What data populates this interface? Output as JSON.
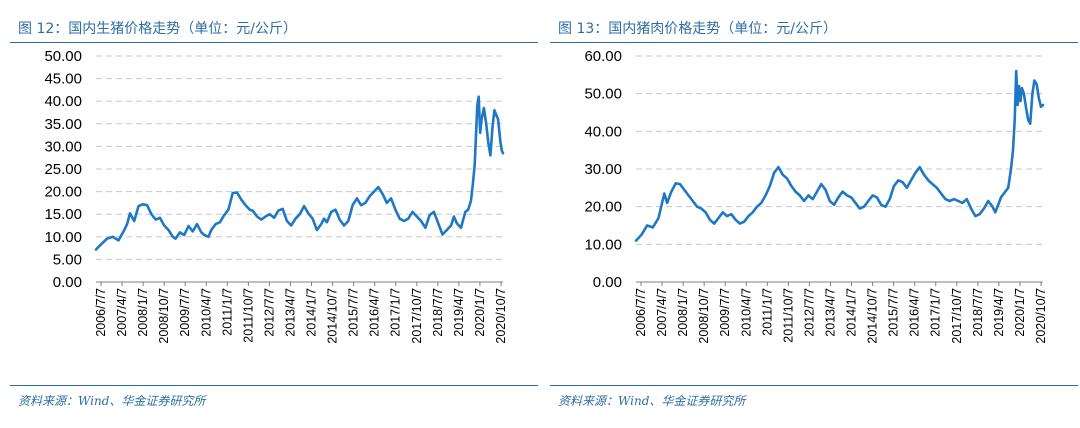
{
  "colors": {
    "accent": "#2e6da4",
    "series": "#1f78c4"
  },
  "panels": [
    {
      "title": "图 12：国内生猪价格走势（单位：元/公斤）",
      "source": "资料来源：Wind、华金证券研究所"
    },
    {
      "title": "图 13：国内猪肉价格走势（单位：元/公斤）",
      "source": "资料来源：Wind、华金证券研究所"
    }
  ],
  "chart_data": [
    {
      "type": "line",
      "title": "",
      "xlabel": "",
      "ylabel": "",
      "grid": true,
      "x_tick_labels": [
        "2006/7/7",
        "2007/4/7",
        "2008/1/7",
        "2008/10/7",
        "2009/7/7",
        "2010/4/7",
        "2011/1/7",
        "2011/10/7",
        "2012/7/7",
        "2013/4/7",
        "2014/1/7",
        "2014/10/7",
        "2015/7/7",
        "2016/4/7",
        "2017/1/7",
        "2017/10/7",
        "2018/7/7",
        "2019/4/7",
        "2020/1/7",
        "2020/10/7"
      ],
      "y_tick_labels": [
        "0.00",
        "5.00",
        "10.00",
        "15.00",
        "20.00",
        "25.00",
        "30.00",
        "35.00",
        "40.00",
        "45.00",
        "50.00"
      ],
      "ylim": [
        0,
        50
      ],
      "x_range": [
        2006.51,
        2020.77
      ],
      "series": [
        {
          "x": [
            2006.51,
            2006.7,
            2006.9,
            2007.1,
            2007.3,
            2007.5,
            2007.6,
            2007.7,
            2007.85,
            2008.0,
            2008.15,
            2008.3,
            2008.45,
            2008.6,
            2008.75,
            2008.9,
            2009.05,
            2009.2,
            2009.3,
            2009.45,
            2009.6,
            2009.75,
            2009.9,
            2010.05,
            2010.2,
            2010.3,
            2010.45,
            2010.55,
            2010.7,
            2010.85,
            2011.0,
            2011.15,
            2011.3,
            2011.45,
            2011.6,
            2011.75,
            2011.9,
            2012.0,
            2012.15,
            2012.3,
            2012.45,
            2012.6,
            2012.75,
            2012.9,
            2013.05,
            2013.2,
            2013.35,
            2013.5,
            2013.65,
            2013.8,
            2013.95,
            2014.1,
            2014.25,
            2014.4,
            2014.5,
            2014.6,
            2014.75,
            2014.9,
            2015.05,
            2015.2,
            2015.35,
            2015.5,
            2015.65,
            2015.8,
            2015.95,
            2016.1,
            2016.25,
            2016.4,
            2016.55,
            2016.7,
            2016.85,
            2017.0,
            2017.15,
            2017.3,
            2017.45,
            2017.6,
            2017.75,
            2017.9,
            2018.05,
            2018.2,
            2018.35,
            2018.5,
            2018.65,
            2018.8,
            2018.95,
            2019.05,
            2019.15,
            2019.3,
            2019.45,
            2019.55,
            2019.65,
            2019.72,
            2019.78,
            2019.82,
            2019.87,
            2019.92,
            2019.97,
            2020.02,
            2020.1,
            2020.18,
            2020.25,
            2020.33,
            2020.4,
            2020.47,
            2020.53,
            2020.6,
            2020.68,
            2020.73,
            2020.77
          ],
          "values": [
            7.2,
            8.4,
            9.6,
            10.0,
            9.2,
            11.5,
            12.8,
            15.2,
            13.5,
            16.8,
            17.2,
            17.0,
            15.0,
            13.8,
            14.2,
            12.5,
            11.5,
            10.0,
            9.6,
            11.0,
            10.4,
            12.4,
            11.2,
            12.8,
            11.0,
            10.4,
            10.0,
            11.5,
            12.8,
            13.2,
            14.8,
            16.0,
            19.7,
            19.8,
            18.2,
            17.0,
            16.0,
            15.8,
            14.5,
            13.8,
            14.5,
            15.0,
            14.2,
            15.8,
            16.2,
            13.5,
            12.5,
            14.0,
            15.0,
            16.8,
            15.2,
            14.0,
            11.5,
            12.8,
            14.0,
            13.2,
            15.5,
            16.0,
            13.8,
            12.5,
            13.5,
            17.0,
            18.5,
            17.0,
            17.5,
            19.0,
            20.0,
            21.0,
            19.5,
            17.5,
            18.5,
            16.0,
            14.0,
            13.5,
            14.0,
            15.5,
            14.5,
            13.5,
            12.0,
            14.8,
            15.5,
            13.0,
            10.5,
            11.5,
            12.5,
            14.5,
            13.0,
            12.0,
            15.5,
            16.0,
            18.0,
            22.0,
            26.0,
            32.0,
            39.0,
            41.0,
            33.0,
            36.0,
            38.5,
            35.0,
            31.0,
            28.0,
            34.0,
            38.0,
            37.0,
            36.0,
            31.0,
            29.0,
            28.5
          ]
        }
      ]
    },
    {
      "type": "line",
      "title": "",
      "xlabel": "",
      "ylabel": "",
      "grid": true,
      "x_tick_labels": [
        "2006/7/7",
        "2007/4/7",
        "2008/1/7",
        "2008/10/7",
        "2009/7/7",
        "2010/4/7",
        "2011/1/7",
        "2011/10/7",
        "2012/7/7",
        "2013/4/7",
        "2014/1/7",
        "2014/10/7",
        "2015/7/7",
        "2016/4/7",
        "2017/1/7",
        "2017/10/7",
        "2018/7/7",
        "2019/4/7",
        "2020/1/7",
        "2020/10/7"
      ],
      "y_tick_labels": [
        "0.00",
        "10.00",
        "20.00",
        "30.00",
        "40.00",
        "50.00",
        "60.00"
      ],
      "ylim": [
        0,
        60
      ],
      "x_range": [
        2006.51,
        2020.77
      ],
      "series": [
        {
          "x": [
            2006.51,
            2006.7,
            2006.9,
            2007.1,
            2007.3,
            2007.5,
            2007.6,
            2007.75,
            2007.9,
            2008.05,
            2008.2,
            2008.35,
            2008.5,
            2008.65,
            2008.8,
            2008.95,
            2009.1,
            2009.25,
            2009.4,
            2009.55,
            2009.7,
            2009.85,
            2010.0,
            2010.15,
            2010.3,
            2010.45,
            2010.6,
            2010.75,
            2010.9,
            2011.05,
            2011.2,
            2011.35,
            2011.5,
            2011.65,
            2011.8,
            2011.95,
            2012.1,
            2012.25,
            2012.4,
            2012.55,
            2012.7,
            2012.85,
            2013.0,
            2013.15,
            2013.3,
            2013.45,
            2013.6,
            2013.75,
            2013.9,
            2014.05,
            2014.2,
            2014.35,
            2014.5,
            2014.65,
            2014.8,
            2014.95,
            2015.1,
            2015.25,
            2015.4,
            2015.55,
            2015.7,
            2015.85,
            2016.0,
            2016.15,
            2016.3,
            2016.45,
            2016.6,
            2016.75,
            2016.9,
            2017.05,
            2017.2,
            2017.35,
            2017.5,
            2017.65,
            2017.8,
            2017.95,
            2018.1,
            2018.25,
            2018.4,
            2018.55,
            2018.7,
            2018.85,
            2019.0,
            2019.1,
            2019.2,
            2019.3,
            2019.45,
            2019.55,
            2019.65,
            2019.72,
            2019.78,
            2019.83,
            2019.88,
            2019.93,
            2019.98,
            2020.03,
            2020.1,
            2020.18,
            2020.25,
            2020.32,
            2020.4,
            2020.47,
            2020.55,
            2020.62,
            2020.7,
            2020.77
          ],
          "values": [
            11.0,
            12.5,
            15.0,
            14.5,
            17.0,
            23.5,
            21.0,
            24.0,
            26.2,
            26.0,
            24.5,
            23.0,
            21.5,
            20.0,
            19.5,
            18.5,
            16.5,
            15.5,
            17.0,
            18.5,
            17.5,
            18.0,
            16.5,
            15.5,
            16.0,
            17.5,
            18.5,
            20.0,
            21.0,
            23.0,
            25.5,
            29.0,
            30.5,
            28.5,
            27.5,
            25.5,
            24.0,
            23.0,
            21.5,
            23.0,
            22.0,
            24.0,
            26.0,
            24.5,
            21.5,
            20.5,
            22.5,
            24.0,
            23.0,
            22.5,
            21.0,
            19.5,
            20.0,
            21.5,
            23.0,
            22.5,
            20.5,
            20.0,
            22.0,
            25.5,
            27.0,
            26.5,
            25.0,
            27.0,
            29.0,
            30.5,
            28.5,
            27.0,
            26.0,
            25.0,
            23.5,
            22.0,
            21.5,
            22.0,
            21.5,
            21.0,
            22.0,
            19.5,
            17.5,
            18.0,
            19.5,
            21.5,
            20.0,
            18.5,
            20.5,
            22.5,
            24.0,
            25.0,
            30.0,
            35.0,
            43.0,
            56.0,
            47.0,
            52.0,
            48.0,
            51.5,
            50.0,
            46.0,
            43.0,
            42.0,
            50.0,
            53.5,
            52.5,
            49.0,
            46.5,
            47.0
          ]
        }
      ]
    }
  ]
}
